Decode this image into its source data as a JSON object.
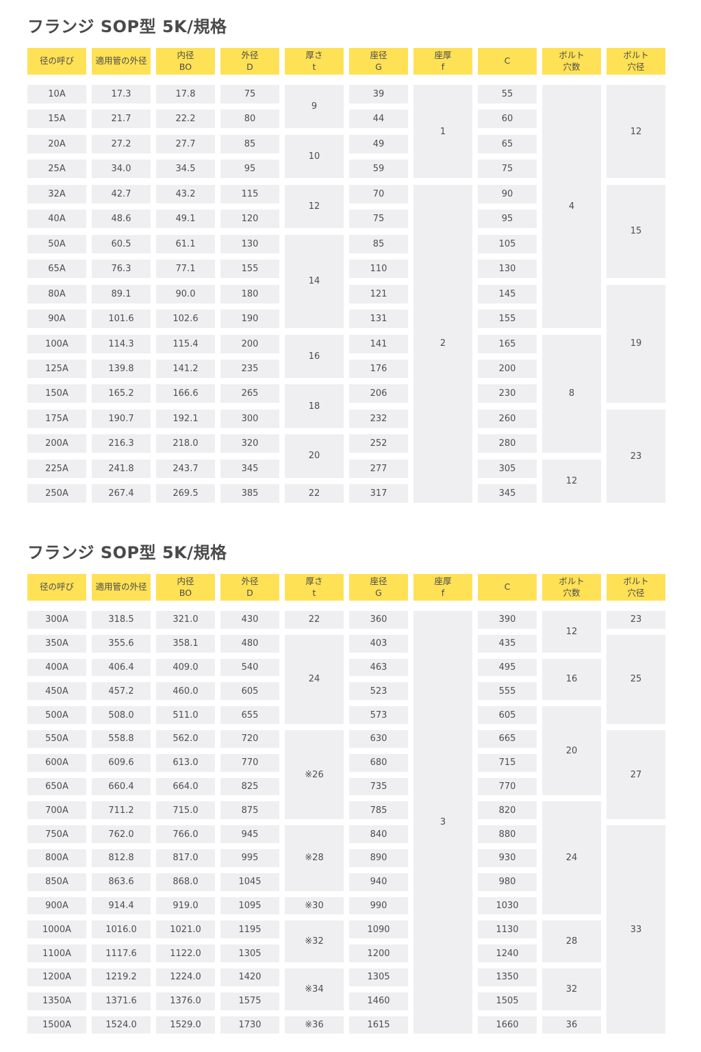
{
  "sections": [
    {
      "title": "フランジ SOP型 5K/規格",
      "headers": [
        [
          "径の呼び"
        ],
        [
          "適用管の外径"
        ],
        [
          "内径",
          "BO"
        ],
        [
          "外径",
          "D"
        ],
        [
          "厚さ",
          "t"
        ],
        [
          "座径",
          "G"
        ],
        [
          "座厚",
          "f"
        ],
        [
          "C"
        ],
        [
          "ボルト",
          "穴数"
        ],
        [
          "ボルト",
          "穴径"
        ]
      ],
      "columns": [
        [
          "10A",
          "15A",
          "20A",
          "25A",
          "32A",
          "40A",
          "50A",
          "65A",
          "80A",
          "90A",
          "100A",
          "125A",
          "150A",
          "175A",
          "200A",
          "225A",
          "250A"
        ],
        [
          "17.3",
          "21.7",
          "27.2",
          "34.0",
          "42.7",
          "48.6",
          "60.5",
          "76.3",
          "89.1",
          "101.6",
          "114.3",
          "139.8",
          "165.2",
          "190.7",
          "216.3",
          "241.8",
          "267.4"
        ],
        [
          "17.8",
          "22.2",
          "27.7",
          "34.5",
          "43.2",
          "49.1",
          "61.1",
          "77.1",
          "90.0",
          "102.6",
          "115.4",
          "141.2",
          "166.6",
          "192.1",
          "218.0",
          "243.7",
          "269.5"
        ],
        [
          "75",
          "80",
          "85",
          "95",
          "115",
          "120",
          "130",
          "155",
          "180",
          "190",
          "200",
          "235",
          "265",
          "300",
          "320",
          "345",
          "385"
        ],
        [
          {
            "v": "9",
            "span": 2
          },
          {
            "v": "10",
            "span": 2
          },
          {
            "v": "12",
            "span": 2
          },
          {
            "v": "14",
            "span": 4
          },
          {
            "v": "16",
            "span": 2
          },
          {
            "v": "18",
            "span": 2
          },
          {
            "v": "20",
            "span": 2
          },
          {
            "v": "22",
            "span": 1
          }
        ],
        [
          "39",
          "44",
          "49",
          "59",
          "70",
          "75",
          "85",
          "110",
          "121",
          "131",
          "141",
          "176",
          "206",
          "232",
          "252",
          "277",
          "317"
        ],
        [
          {
            "v": "1",
            "span": 4
          },
          {
            "v": "2",
            "span": 13
          }
        ],
        [
          "55",
          "60",
          "65",
          "75",
          "90",
          "95",
          "105",
          "130",
          "145",
          "155",
          "165",
          "200",
          "230",
          "260",
          "280",
          "305",
          "345"
        ],
        [
          {
            "v": "4",
            "span": 10
          },
          {
            "v": "8",
            "span": 5
          },
          {
            "v": "12",
            "span": 2
          }
        ],
        [
          {
            "v": "12",
            "span": 4
          },
          {
            "v": "15",
            "span": 4
          },
          {
            "v": "19",
            "span": 5
          },
          {
            "v": "23",
            "span": 4
          }
        ]
      ]
    },
    {
      "title": "フランジ SOP型 5K/規格",
      "headers": [
        [
          "径の呼び"
        ],
        [
          "適用管の外径"
        ],
        [
          "内径",
          "BO"
        ],
        [
          "外径",
          "D"
        ],
        [
          "厚さ",
          "t"
        ],
        [
          "座径",
          "G"
        ],
        [
          "座厚",
          "f"
        ],
        [
          "C"
        ],
        [
          "ボルト",
          "穴数"
        ],
        [
          "ボルト",
          "穴径"
        ]
      ],
      "columns": [
        [
          "300A",
          "350A",
          "400A",
          "450A",
          "500A",
          "550A",
          "600A",
          "650A",
          "700A",
          "750A",
          "800A",
          "850A",
          "900A",
          "1000A",
          "1100A",
          "1200A",
          "1350A",
          "1500A"
        ],
        [
          "318.5",
          "355.6",
          "406.4",
          "457.2",
          "508.0",
          "558.8",
          "609.6",
          "660.4",
          "711.2",
          "762.0",
          "812.8",
          "863.6",
          "914.4",
          "1016.0",
          "1117.6",
          "1219.2",
          "1371.6",
          "1524.0"
        ],
        [
          "321.0",
          "358.1",
          "409.0",
          "460.0",
          "511.0",
          "562.0",
          "613.0",
          "664.0",
          "715.0",
          "766.0",
          "817.0",
          "868.0",
          "919.0",
          "1021.0",
          "1122.0",
          "1224.0",
          "1376.0",
          "1529.0"
        ],
        [
          "430",
          "480",
          "540",
          "605",
          "655",
          "720",
          "770",
          "825",
          "875",
          "945",
          "995",
          "1045",
          "1095",
          "1195",
          "1305",
          "1420",
          "1575",
          "1730"
        ],
        [
          {
            "v": "22",
            "span": 1
          },
          {
            "v": "24",
            "span": 4
          },
          {
            "v": "※26",
            "span": 4
          },
          {
            "v": "※28",
            "span": 3
          },
          {
            "v": "※30",
            "span": 1
          },
          {
            "v": "※32",
            "span": 2
          },
          {
            "v": "※34",
            "span": 2
          },
          {
            "v": "※36",
            "span": 1
          }
        ],
        [
          "360",
          "403",
          "463",
          "523",
          "573",
          "630",
          "680",
          "735",
          "785",
          "840",
          "890",
          "940",
          "990",
          "1090",
          "1200",
          "1305",
          "1460",
          "1615"
        ],
        [
          {
            "v": "3",
            "span": 18
          }
        ],
        [
          "390",
          "435",
          "495",
          "555",
          "605",
          "665",
          "715",
          "770",
          "820",
          "880",
          "930",
          "980",
          "1030",
          "1130",
          "1240",
          "1350",
          "1505",
          "1660"
        ],
        [
          {
            "v": "12",
            "span": 2
          },
          {
            "v": "16",
            "span": 2
          },
          {
            "v": "20",
            "span": 4
          },
          {
            "v": "24",
            "span": 5
          },
          {
            "v": "28",
            "span": 2
          },
          {
            "v": "32",
            "span": 2
          },
          {
            "v": "36",
            "span": 1
          }
        ],
        [
          {
            "v": "23",
            "span": 1
          },
          {
            "v": "25",
            "span": 4
          },
          {
            "v": "27",
            "span": 4
          },
          {
            "v": "33",
            "span": 9
          }
        ]
      ]
    }
  ]
}
